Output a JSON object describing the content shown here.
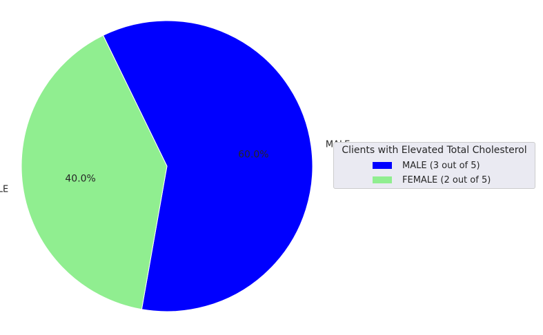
{
  "chart_data": {
    "type": "pie",
    "categories": [
      "MALE",
      "FEMALE"
    ],
    "values": [
      3,
      2
    ],
    "percent_labels": [
      "60.0%",
      "40.0%"
    ],
    "colors": [
      "#0000ff",
      "#90ee90"
    ],
    "legend": {
      "title": "Clients with Elevated Total Cholesterol",
      "placement": "right",
      "entries": [
        "MALE (3 out of 5)",
        "FEMALE (2 out of 5)"
      ]
    }
  }
}
